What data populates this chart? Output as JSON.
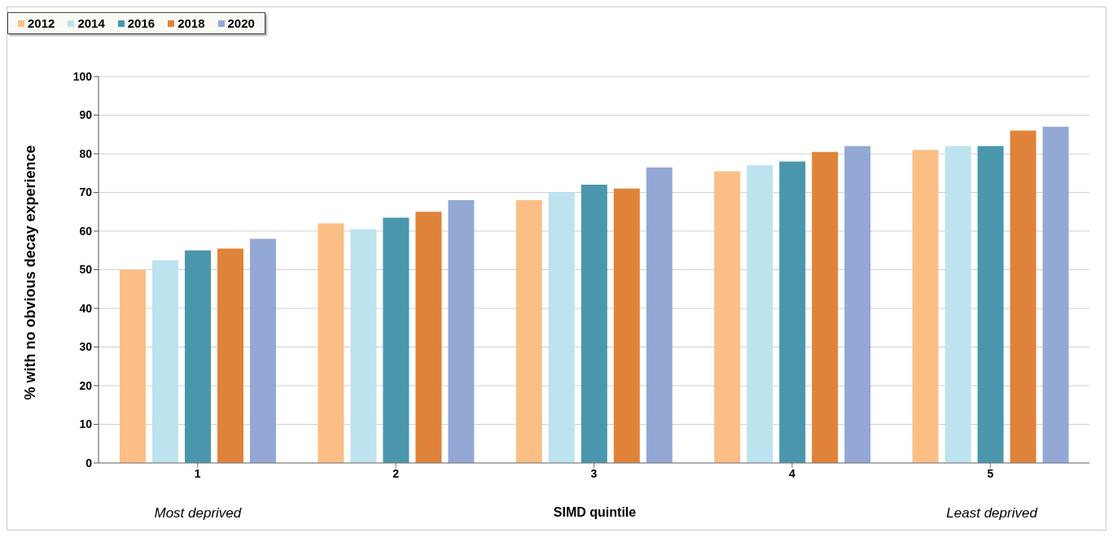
{
  "chart_data": {
    "type": "bar",
    "xlabel": "SIMD quintile",
    "ylabel": "% with  no obvious decay experience",
    "categories": [
      "1",
      "2",
      "3",
      "4",
      "5"
    ],
    "series": [
      {
        "name": "2012",
        "color": "#fbbf86",
        "values": [
          50,
          62,
          68,
          75.5,
          81
        ]
      },
      {
        "name": "2014",
        "color": "#bde3ee",
        "values": [
          52.5,
          60.5,
          70,
          77,
          82
        ]
      },
      {
        "name": "2016",
        "color": "#4a97ad",
        "values": [
          55,
          63.5,
          72,
          78,
          82
        ]
      },
      {
        "name": "2018",
        "color": "#e0833a",
        "values": [
          55.5,
          65,
          71,
          80.5,
          86
        ]
      },
      {
        "name": "2020",
        "color": "#93a8d5",
        "values": [
          58,
          68,
          76.5,
          82,
          87
        ]
      }
    ],
    "ylim": [
      0,
      100
    ],
    "yticks": [
      0,
      10,
      20,
      30,
      40,
      50,
      60,
      70,
      80,
      90,
      100
    ],
    "grid": "y",
    "legend": "top",
    "annotations": [
      "Most deprived",
      "Least deprived"
    ]
  }
}
